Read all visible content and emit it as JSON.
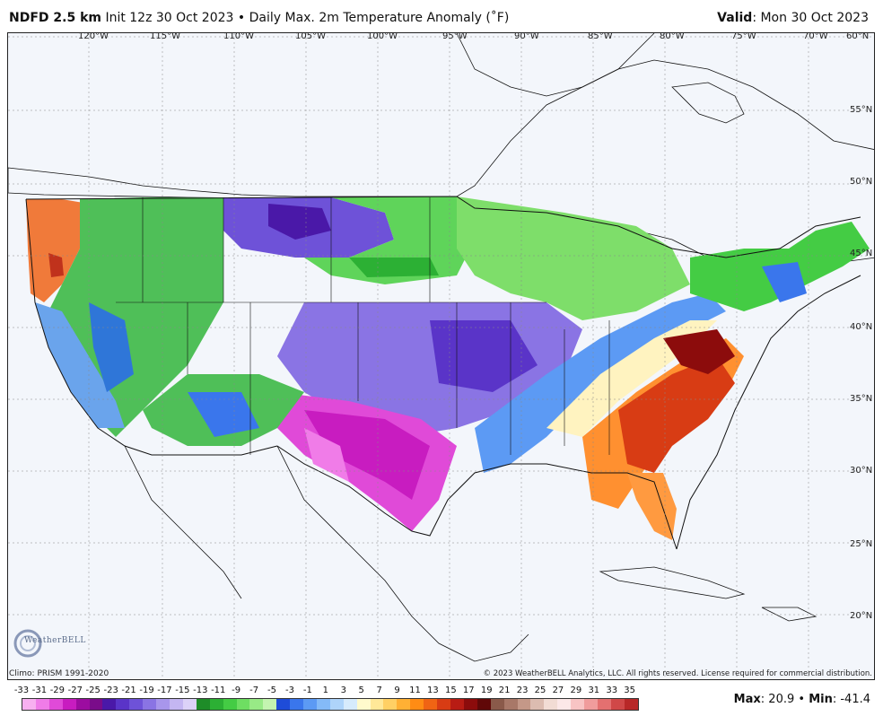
{
  "header": {
    "product": "NDFD 2.5 km",
    "init": "Init 12z 30 Oct 2023",
    "separator": "•",
    "description": "Daily Max. 2m Temperature Anomaly (˚F)",
    "valid_label": "Valid",
    "valid_value": ": Mon 30 Oct 2023"
  },
  "map": {
    "lon_labels": [
      "120°W",
      "115°W",
      "110°W",
      "105°W",
      "100°W",
      "95°W",
      "90°W",
      "85°W",
      "80°W",
      "75°W",
      "70°W"
    ],
    "lat_labels": [
      "60°N",
      "55°N",
      "50°N",
      "45°N",
      "40°N",
      "35°N",
      "30°N",
      "25°N",
      "20°N"
    ],
    "logo_text": "WeatherBELL",
    "logo_subtext": "Analytics LLC"
  },
  "footer": {
    "climo": "Climo: PRISM 1991-2020",
    "copyright": "© 2023 WeatherBELL Analytics, LLC. All rights reserved. License required for commercial distribution."
  },
  "colorbar": {
    "labels": [
      "-33",
      "-31",
      "-29",
      "-27",
      "-25",
      "-23",
      "-21",
      "-19",
      "-17",
      "-15",
      "-13",
      "-11",
      "-9",
      "-7",
      "-5",
      "-3",
      "-1",
      "1",
      "3",
      "5",
      "7",
      "9",
      "11",
      "13",
      "15",
      "17",
      "19",
      "21",
      "23",
      "25",
      "27",
      "29",
      "31",
      "33",
      "35"
    ],
    "colors": [
      "#f8b0f0",
      "#f07ce8",
      "#e04ad8",
      "#c81cc0",
      "#9c0ca0",
      "#7a0c8a",
      "#4a18a8",
      "#5a34c8",
      "#6e52d8",
      "#8a74e4",
      "#a896ec",
      "#c4b6f2",
      "#dcd2f8",
      "#1e8c28",
      "#2cb034",
      "#44cc44",
      "#6ede62",
      "#98ea86",
      "#c4f4b0",
      "#1e4cd8",
      "#3a76ec",
      "#5c9af4",
      "#84baf8",
      "#aed4fa",
      "#d6ebfc",
      "#fffacc",
      "#ffe898",
      "#ffd064",
      "#ffb034",
      "#ff8c14",
      "#f06414",
      "#d83c14",
      "#b81c14",
      "#8c0c0c",
      "#600808",
      "#8a5a4a",
      "#a87868",
      "#c49888",
      "#dcbcb0",
      "#f2dcd4",
      "#fce8e8",
      "#f8c4c4",
      "#f09c9c",
      "#e47070",
      "#d04848",
      "#b82828"
    ]
  },
  "stats": {
    "max_label": "Max",
    "max_value": ": 20.9",
    "separator": " • ",
    "min_label": "Min",
    "min_value": ": -41.4"
  }
}
